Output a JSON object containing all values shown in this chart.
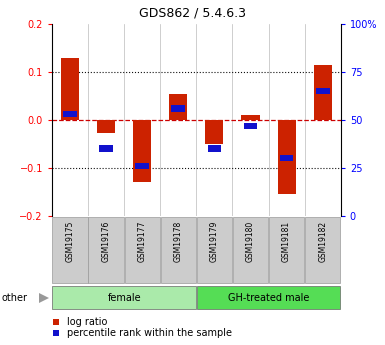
{
  "title": "GDS862 / 5.4.6.3",
  "samples": [
    "GSM19175",
    "GSM19176",
    "GSM19177",
    "GSM19178",
    "GSM19179",
    "GSM19180",
    "GSM19181",
    "GSM19182"
  ],
  "log_ratio": [
    0.13,
    -0.028,
    -0.13,
    0.055,
    -0.05,
    0.01,
    -0.155,
    0.115
  ],
  "percentile": [
    53,
    35,
    26,
    56,
    35,
    47,
    30,
    65
  ],
  "groups": [
    {
      "label": "female",
      "span": [
        0,
        3
      ],
      "color": "#AAEAAA"
    },
    {
      "label": "GH-treated male",
      "span": [
        4,
        7
      ],
      "color": "#55DD55"
    }
  ],
  "ylim": [
    -0.2,
    0.2
  ],
  "yticks_left": [
    -0.2,
    -0.1,
    0.0,
    0.1,
    0.2
  ],
  "yticks_right_pct": [
    0,
    25,
    50,
    75,
    100
  ],
  "bar_color": "#CC2200",
  "percentile_color": "#1111CC",
  "zero_line_color": "#CC0000",
  "dot_line_color": "#111111",
  "sample_box_color": "#CCCCCC",
  "sample_box_edge": "#999999",
  "legend_log": "log ratio",
  "legend_pct": "percentile rank within the sample",
  "other_label": "other"
}
